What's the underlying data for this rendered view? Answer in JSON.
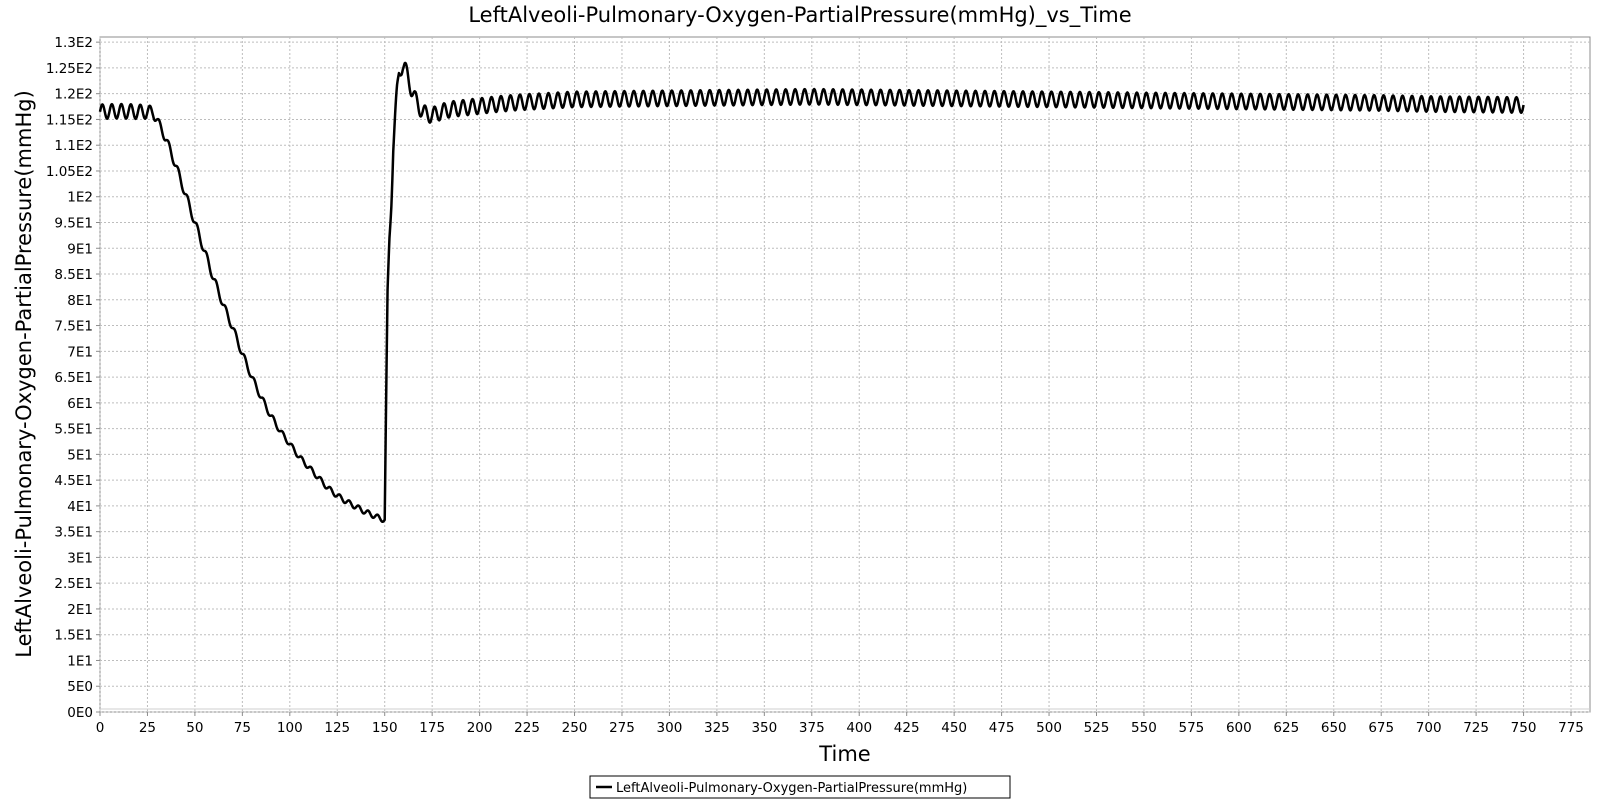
{
  "chart_data": {
    "type": "line",
    "title": "LeftAlveoli-Pulmonary-Oxygen-PartialPressure(mmHg)_vs_Time",
    "xlabel": "Time",
    "ylabel": "LeftAlveoli-Pulmonary-Oxygen-PartialPressure(mmHg)",
    "xlim": [
      0,
      785
    ],
    "ylim": [
      0,
      131
    ],
    "x_ticks": [
      0,
      25,
      50,
      75,
      100,
      125,
      150,
      175,
      200,
      225,
      250,
      275,
      300,
      325,
      350,
      375,
      400,
      425,
      450,
      475,
      500,
      525,
      550,
      575,
      600,
      625,
      650,
      675,
      700,
      725,
      750,
      775
    ],
    "x_tick_labels": [
      "0",
      "25",
      "50",
      "75",
      "100",
      "125",
      "150",
      "175",
      "200",
      "225",
      "250",
      "275",
      "300",
      "325",
      "350",
      "375",
      "400",
      "425",
      "450",
      "475",
      "500",
      "525",
      "550",
      "575",
      "600",
      "625",
      "650",
      "675",
      "700",
      "725",
      "750",
      "775"
    ],
    "y_ticks": [
      0,
      5,
      10,
      15,
      20,
      25,
      30,
      35,
      40,
      45,
      50,
      55,
      60,
      65,
      70,
      75,
      80,
      85,
      90,
      95,
      100,
      105,
      110,
      115,
      120,
      125,
      130
    ],
    "y_tick_labels": [
      "0E0",
      "5E0",
      "1E1",
      "1.5E1",
      "2E1",
      "2.5E1",
      "3E1",
      "3.5E1",
      "4E1",
      "4.5E1",
      "5E1",
      "5.5E1",
      "6E1",
      "6.5E1",
      "7E1",
      "7.5E1",
      "8E1",
      "8.5E1",
      "9E1",
      "9.5E1",
      "1E2",
      "1.05E2",
      "1.1E2",
      "1.15E2",
      "1.2E2",
      "1.25E2",
      "1.3E2"
    ],
    "grid": true,
    "legend_position": "bottom-center",
    "series": [
      {
        "name": "LeftAlveoli-Pulmonary-Oxygen-PartialPressure(mmHg)",
        "color": "#000000",
        "x": [
          0,
          10,
          20,
          28,
          30,
          35,
          40,
          45,
          50,
          55,
          60,
          65,
          70,
          75,
          80,
          85,
          90,
          95,
          100,
          105,
          110,
          115,
          120,
          125,
          130,
          135,
          140,
          145,
          148,
          150,
          150.6,
          151.5,
          152.5,
          153.5,
          154.5,
          155.5,
          156.5,
          157.5,
          158.5,
          159.5,
          160.5,
          162,
          164,
          166,
          168,
          170,
          172,
          175,
          180,
          185,
          190,
          200,
          210,
          220,
          230,
          240,
          250,
          275,
          300,
          325,
          350,
          375,
          400,
          425,
          450,
          475,
          500,
          525,
          550,
          575,
          600,
          625,
          650,
          675,
          700,
          725,
          750
        ],
        "y": [
          116.5,
          116.6,
          116.5,
          116.4,
          115,
          111,
          106,
          100.5,
          95,
          89.5,
          84,
          79,
          74.5,
          69.5,
          65,
          61,
          57.5,
          54.5,
          52,
          49.5,
          47.5,
          45.5,
          43.5,
          42,
          40.8,
          39.8,
          38.8,
          38,
          37.5,
          37.3,
          56,
          80,
          92,
          100,
          110,
          115,
          120,
          124,
          125,
          125.5,
          125,
          123.5,
          121,
          119,
          117.5,
          116.5,
          116,
          115.8,
          116.5,
          117,
          117.2,
          117.6,
          118,
          118.3,
          118.5,
          118.7,
          118.9,
          119,
          119.1,
          119.2,
          119.3,
          119.4,
          119.3,
          119.2,
          119.1,
          119,
          118.9,
          118.8,
          118.7,
          118.6,
          118.5,
          118.4,
          118.3,
          118.2,
          118,
          117.9,
          117.8
        ],
        "oscillation_amplitude": [
          1.4,
          1.4,
          1.4,
          1.2,
          0.8,
          0.8,
          0.8,
          0.8,
          0.8,
          0.8,
          0.8,
          0.7,
          0.7,
          0.7,
          0.6,
          0.6,
          0.6,
          0.5,
          0.5,
          0.5,
          0.5,
          0.5,
          0.5,
          0.5,
          0.5,
          0.5,
          0.5,
          0.5,
          0.5,
          0.5,
          0.5,
          2,
          2,
          2,
          2,
          2,
          1.8,
          1.5,
          1.5,
          1.5,
          1.5,
          1.5,
          1.5,
          1.5,
          1.5,
          1.5,
          1.5,
          1.5,
          1.5,
          1.5,
          1.5,
          1.5,
          1.5,
          1.5,
          1.5,
          1.5,
          1.5,
          1.5,
          1.5,
          1.5,
          1.5,
          1.5,
          1.5,
          1.5,
          1.5,
          1.5,
          1.5,
          1.5,
          1.5,
          1.5,
          1.5,
          1.5,
          1.5,
          1.5,
          1.5,
          1.5,
          1.5
        ],
        "oscillation_period": 5
      }
    ]
  }
}
